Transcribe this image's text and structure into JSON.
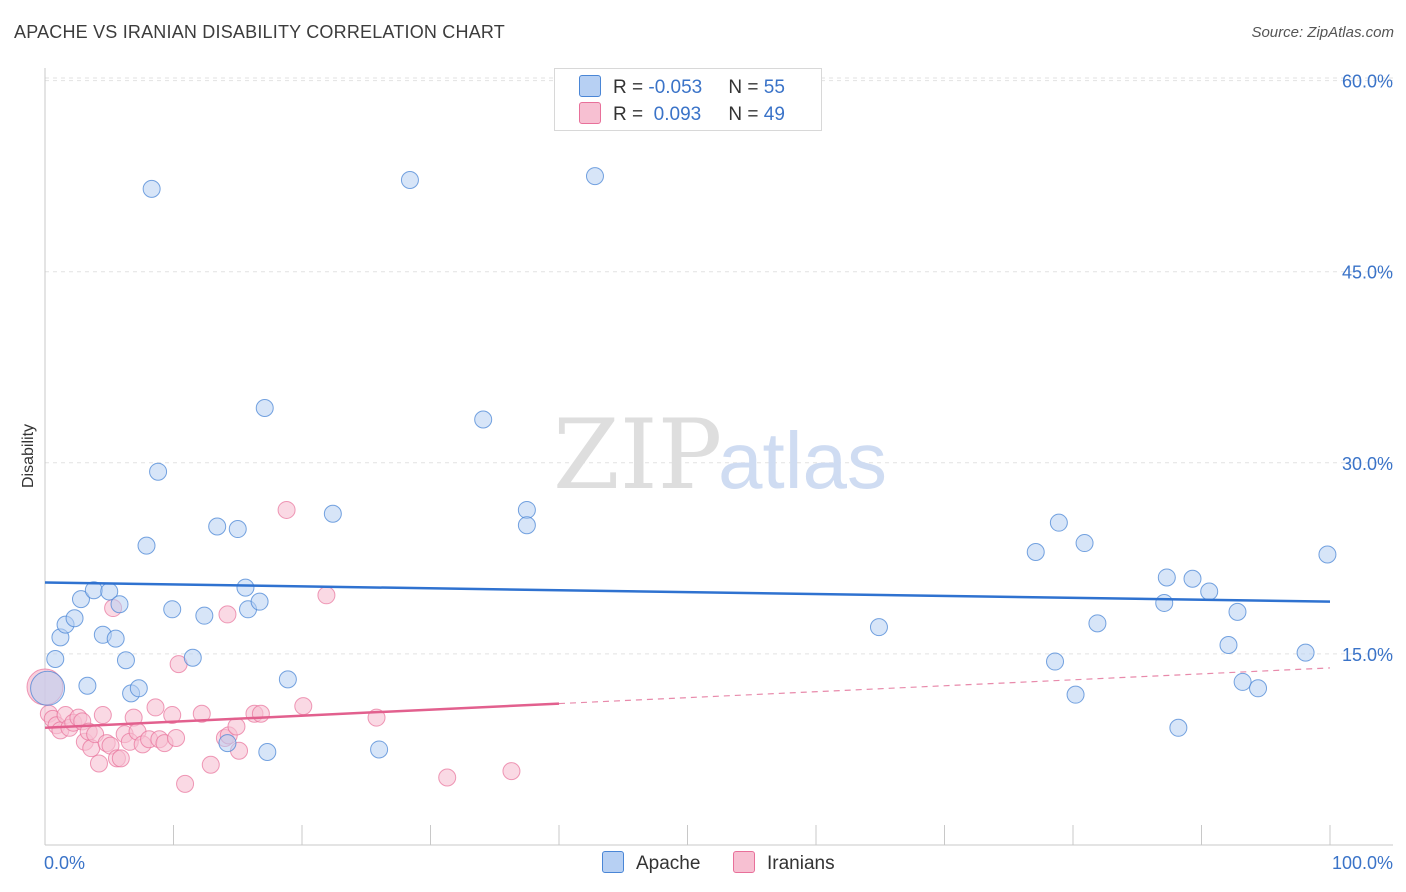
{
  "title": "APACHE VS IRANIAN DISABILITY CORRELATION CHART",
  "source": "Source: ZipAtlas.com",
  "watermark": {
    "zip": "ZIP",
    "atlas": "atlas"
  },
  "colors": {
    "apache": "#4a86d6",
    "apache_fill": "#b7d0f3",
    "iranian": "#e8709a",
    "iranian_fill": "#f7c0d2",
    "axis_label": "#3a73c8"
  },
  "legend": {
    "rows": [
      {
        "r_label": "R = ",
        "r_value": "-0.053",
        "n_label": "N = ",
        "n_value": "55"
      },
      {
        "r_label": "R = ",
        "r_value": " 0.093",
        "n_label": "N = ",
        "n_value": "49"
      }
    ]
  },
  "bottom_legend": {
    "apache": "Apache",
    "iranians": "Iranians"
  },
  "chart_data": {
    "type": "scatter",
    "title": "APACHE VS IRANIAN DISABILITY CORRELATION CHART",
    "xlabel": "",
    "ylabel": "Disability",
    "xlim": [
      0,
      100
    ],
    "ylim": [
      0,
      62
    ],
    "x_tick_labels": [
      "0.0%",
      "100.0%"
    ],
    "y_ticks": [
      15,
      30,
      45,
      60
    ],
    "y_tick_labels": [
      "15.0%",
      "30.0%",
      "45.0%",
      "60.0%"
    ],
    "series": [
      {
        "name": "Apache",
        "R": -0.053,
        "N": 55,
        "trend": {
          "x0": 0,
          "y0": 20.6,
          "x1": 100,
          "y1": 19.1
        },
        "points": [
          [
            0.2,
            12.3
          ],
          [
            0.8,
            14.6
          ],
          [
            1.2,
            16.3
          ],
          [
            1.6,
            17.3
          ],
          [
            2.3,
            17.8
          ],
          [
            2.8,
            19.3
          ],
          [
            3.3,
            12.5
          ],
          [
            3.8,
            20.0
          ],
          [
            4.5,
            16.5
          ],
          [
            5.0,
            19.9
          ],
          [
            5.5,
            16.2
          ],
          [
            5.8,
            18.9
          ],
          [
            6.3,
            14.5
          ],
          [
            6.7,
            11.9
          ],
          [
            7.3,
            12.3
          ],
          [
            7.9,
            23.5
          ],
          [
            8.3,
            51.5
          ],
          [
            8.8,
            29.3
          ],
          [
            9.9,
            18.5
          ],
          [
            11.5,
            14.7
          ],
          [
            12.4,
            18.0
          ],
          [
            13.4,
            25.0
          ],
          [
            14.2,
            8.0
          ],
          [
            15.0,
            24.8
          ],
          [
            15.6,
            20.2
          ],
          [
            15.8,
            18.5
          ],
          [
            16.7,
            19.1
          ],
          [
            17.1,
            34.3
          ],
          [
            17.3,
            7.3
          ],
          [
            18.9,
            13.0
          ],
          [
            22.4,
            26.0
          ],
          [
            26.0,
            7.5
          ],
          [
            28.4,
            52.2
          ],
          [
            34.1,
            33.4
          ],
          [
            37.5,
            26.3
          ],
          [
            37.5,
            25.1
          ],
          [
            42.8,
            52.5
          ],
          [
            64.9,
            17.1
          ],
          [
            77.1,
            23.0
          ],
          [
            78.6,
            14.4
          ],
          [
            78.9,
            25.3
          ],
          [
            80.2,
            11.8
          ],
          [
            80.9,
            23.7
          ],
          [
            81.9,
            17.4
          ],
          [
            87.1,
            19.0
          ],
          [
            87.3,
            21.0
          ],
          [
            88.2,
            9.2
          ],
          [
            89.3,
            20.9
          ],
          [
            90.6,
            19.9
          ],
          [
            92.1,
            15.7
          ],
          [
            92.8,
            18.3
          ],
          [
            93.2,
            12.8
          ],
          [
            94.4,
            12.3
          ],
          [
            98.1,
            15.1
          ],
          [
            99.8,
            22.8
          ]
        ]
      },
      {
        "name": "Iranians",
        "R": 0.093,
        "N": 49,
        "trend": {
          "x0": 0,
          "y0": 9.2,
          "x1": 40,
          "y1": 11.1,
          "dashed_to_x": 100,
          "dashed_to_y": 13.9
        },
        "points": [
          [
            0.3,
            10.3
          ],
          [
            0.6,
            9.9
          ],
          [
            0.9,
            9.4
          ],
          [
            1.2,
            9.0
          ],
          [
            1.6,
            10.2
          ],
          [
            1.9,
            9.2
          ],
          [
            2.2,
            9.6
          ],
          [
            2.6,
            10.0
          ],
          [
            2.9,
            9.7
          ],
          [
            3.1,
            8.1
          ],
          [
            3.4,
            8.9
          ],
          [
            3.6,
            7.6
          ],
          [
            3.9,
            8.7
          ],
          [
            4.2,
            6.4
          ],
          [
            4.5,
            10.2
          ],
          [
            4.8,
            8.0
          ],
          [
            5.1,
            7.8
          ],
          [
            5.3,
            18.6
          ],
          [
            5.6,
            6.8
          ],
          [
            5.9,
            6.8
          ],
          [
            6.2,
            8.7
          ],
          [
            6.6,
            8.1
          ],
          [
            6.9,
            10.0
          ],
          [
            7.2,
            8.9
          ],
          [
            7.6,
            7.9
          ],
          [
            8.1,
            8.3
          ],
          [
            8.6,
            10.8
          ],
          [
            8.9,
            8.3
          ],
          [
            9.3,
            8.0
          ],
          [
            9.9,
            10.2
          ],
          [
            10.2,
            8.4
          ],
          [
            10.4,
            14.2
          ],
          [
            10.9,
            4.8
          ],
          [
            12.2,
            10.3
          ],
          [
            12.9,
            6.3
          ],
          [
            14.2,
            18.1
          ],
          [
            14.0,
            8.4
          ],
          [
            14.3,
            8.6
          ],
          [
            14.9,
            9.3
          ],
          [
            15.1,
            7.4
          ],
          [
            16.3,
            10.3
          ],
          [
            16.8,
            10.3
          ],
          [
            18.8,
            26.3
          ],
          [
            20.1,
            10.9
          ],
          [
            21.9,
            19.6
          ],
          [
            25.8,
            10.0
          ],
          [
            31.3,
            5.3
          ],
          [
            36.3,
            5.8
          ],
          [
            0.0,
            12.4
          ]
        ]
      }
    ]
  }
}
